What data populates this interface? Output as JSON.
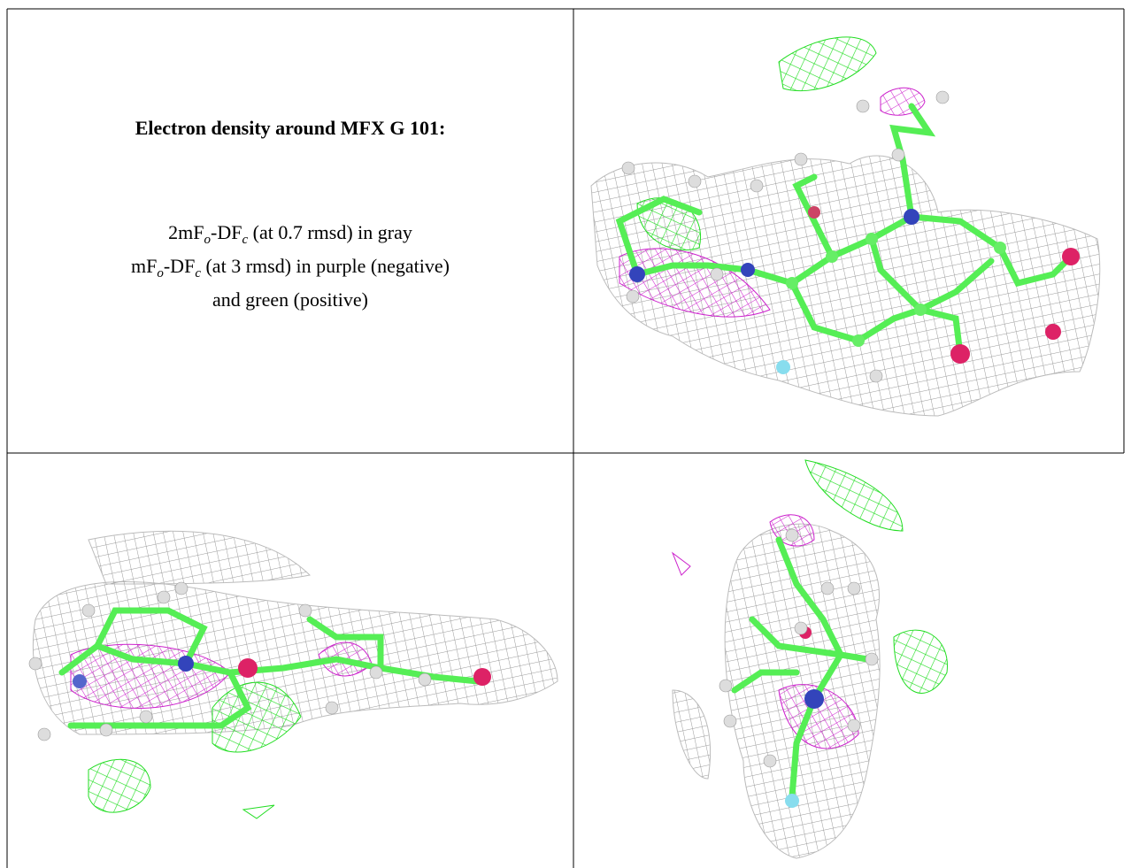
{
  "text": {
    "title": "Electron density around MFX G 101:",
    "lines": [
      [
        "2mF",
        {
          "sub": "o"
        },
        "-DF",
        {
          "sub": "c"
        },
        " (at 0.7 rmsd) in gray"
      ],
      [
        "mF",
        {
          "sub": "o"
        },
        "-DF",
        {
          "sub": "c"
        },
        " (at 3 rmsd) in purple (negative)"
      ],
      [
        "and green (positive)"
      ]
    ]
  }
}
